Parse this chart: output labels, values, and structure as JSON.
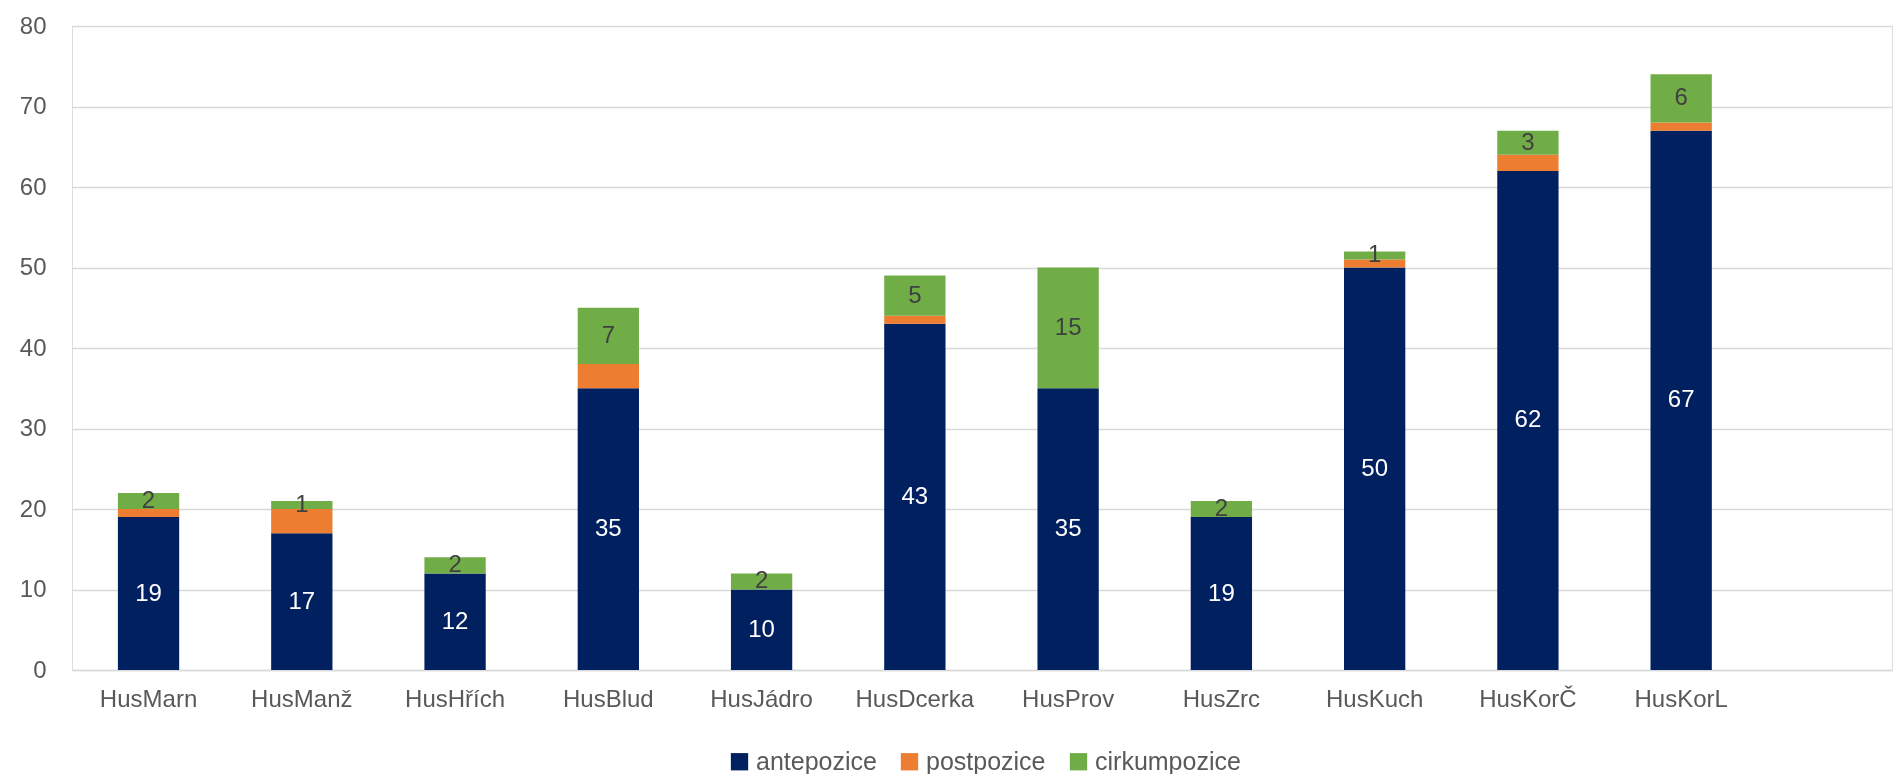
{
  "chart_data": {
    "type": "bar",
    "stacked": true,
    "categories": [
      "HusMarn",
      "HusManž",
      "HusHřích",
      "HusBlud",
      "HusJádro",
      "HusDcerka",
      "HusProv",
      "HusZrc",
      "HusKuch",
      "HusKorČ",
      "HusKorL"
    ],
    "series": [
      {
        "name": "antepozice",
        "color": "#002060",
        "values": [
          19,
          17,
          12,
          35,
          10,
          43,
          35,
          19,
          50,
          62,
          67
        ],
        "data_labels": true
      },
      {
        "name": "postpozice",
        "color": "#ed7d31",
        "values": [
          1,
          3,
          0,
          3,
          0,
          1,
          0,
          0,
          1,
          2,
          1
        ]
      },
      {
        "name": "cirkumpozice",
        "color": "#70ad47",
        "values": [
          2,
          1,
          2,
          7,
          2,
          5,
          15,
          2,
          1,
          3,
          6
        ],
        "data_labels": true
      }
    ],
    "ylim": [
      0,
      80
    ],
    "yticks": [
      0,
      10,
      20,
      30,
      40,
      50,
      60,
      70,
      80
    ],
    "grid": "y",
    "legend": "bottom"
  }
}
